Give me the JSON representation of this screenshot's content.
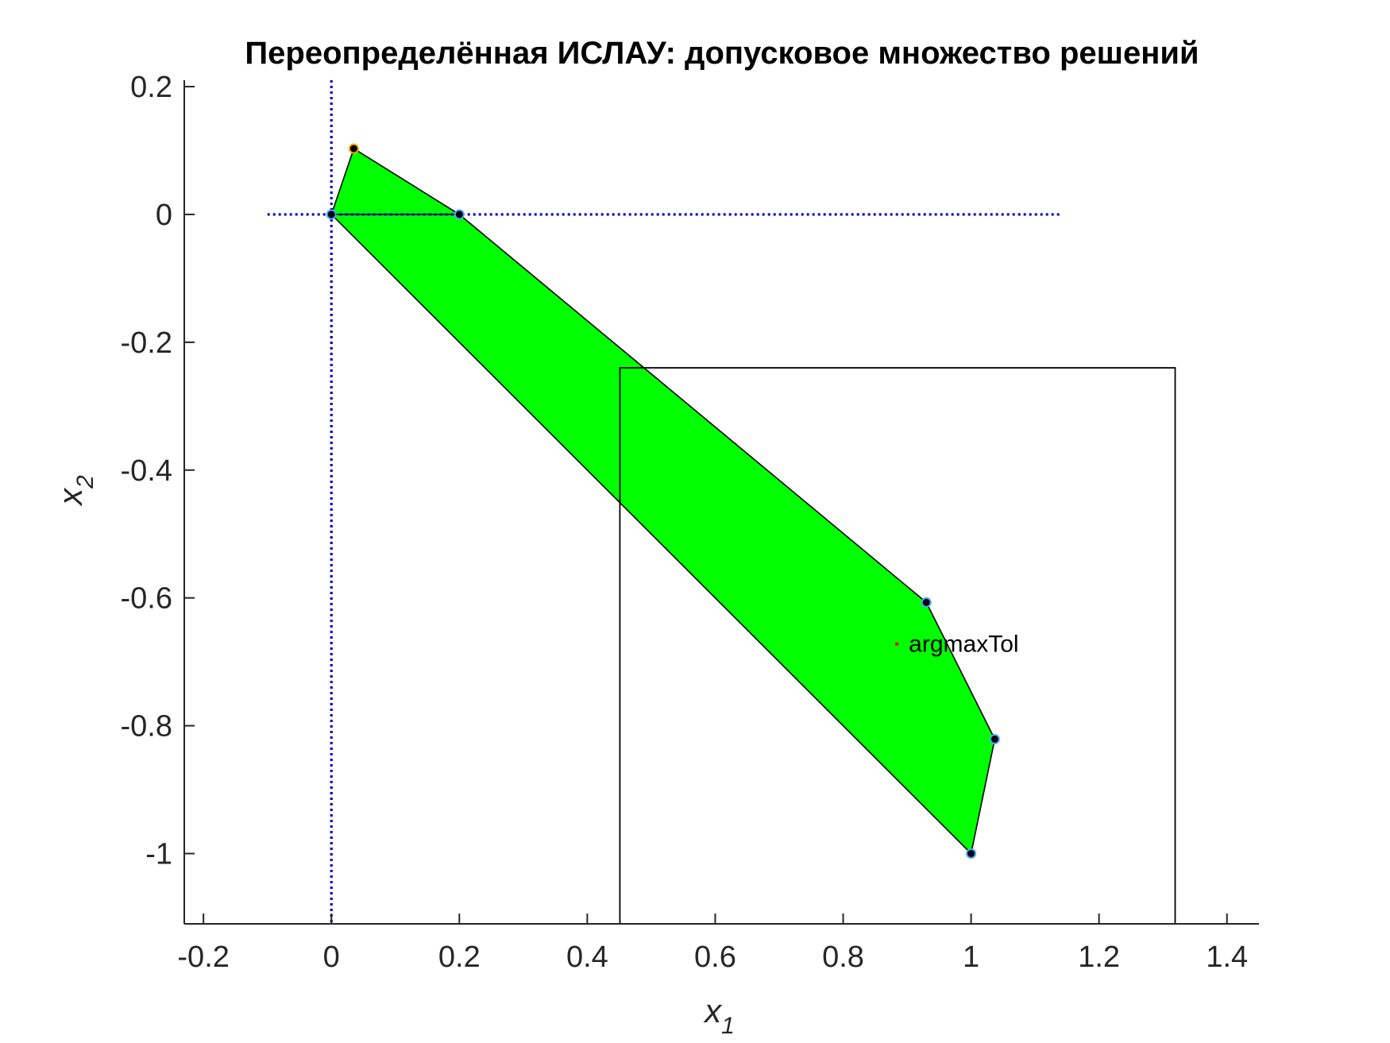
{
  "chart_data": {
    "type": "area",
    "title": "Переопределённая ИСЛАУ: допусковое множество решений",
    "xlabel": "x",
    "xlabel_sub": "1",
    "ylabel": "x",
    "ylabel_sub": "2",
    "xlim": [
      -0.23,
      1.45
    ],
    "ylim": [
      -1.11,
      0.21
    ],
    "xticks": [
      -0.2,
      0,
      0.2,
      0.4,
      0.6,
      0.8,
      1,
      1.2,
      1.4
    ],
    "xtick_labels": [
      "-0.2",
      "0",
      "0.2",
      "0.4",
      "0.6",
      "0.8",
      "1",
      "1.2",
      "1.4"
    ],
    "yticks": [
      0.2,
      0,
      -0.2,
      -0.4,
      -0.6,
      -0.8,
      -1
    ],
    "ytick_labels": [
      "0.2",
      "0",
      "-0.2",
      "-0.4",
      "-0.6",
      "-0.8",
      "-1"
    ],
    "grid": false,
    "tolerance_set": {
      "fill_color": "#00ff00",
      "edge_color": "#000000",
      "vertices": [
        [
          0.0,
          0.0
        ],
        [
          0.035,
          0.103
        ],
        [
          0.2,
          0.0
        ],
        [
          0.93,
          -0.607
        ],
        [
          1.037,
          -0.821
        ],
        [
          1.0,
          -1.0
        ]
      ]
    },
    "inner_edge": [
      [
        0.0,
        0.0
      ],
      [
        0.2,
        0.0
      ]
    ],
    "points": [
      {
        "x": 0.0,
        "y": 0.0,
        "fill": "#000000",
        "edge": "#4da6ff"
      },
      {
        "x": 0.035,
        "y": 0.103,
        "fill": "#000000",
        "edge": "#ffa500"
      },
      {
        "x": 0.2,
        "y": 0.0,
        "fill": "#000000",
        "edge": "#4da6ff"
      },
      {
        "x": 0.93,
        "y": -0.607,
        "fill": "#000000",
        "edge": "#4da6ff"
      },
      {
        "x": 1.037,
        "y": -0.821,
        "fill": "#000000",
        "edge": "#4da6ff"
      },
      {
        "x": 1.0,
        "y": -1.0,
        "fill": "#000000",
        "edge": "#4da6ff"
      }
    ],
    "reference_lines": {
      "color": "#0000cc",
      "style": "dotted",
      "vertical": {
        "x": 0.0,
        "y_range": [
          -1.11,
          0.21
        ]
      },
      "horizontal": {
        "y": 0.0,
        "x_range": [
          -0.1,
          1.14
        ]
      }
    },
    "box": {
      "x": [
        0.451,
        1.319
      ],
      "y": [
        -1.11,
        -0.24
      ],
      "color": "#000000"
    },
    "argmax": {
      "x": 0.884,
      "y": -0.672,
      "label": "argmaxTol",
      "color": "#ff0000"
    }
  }
}
